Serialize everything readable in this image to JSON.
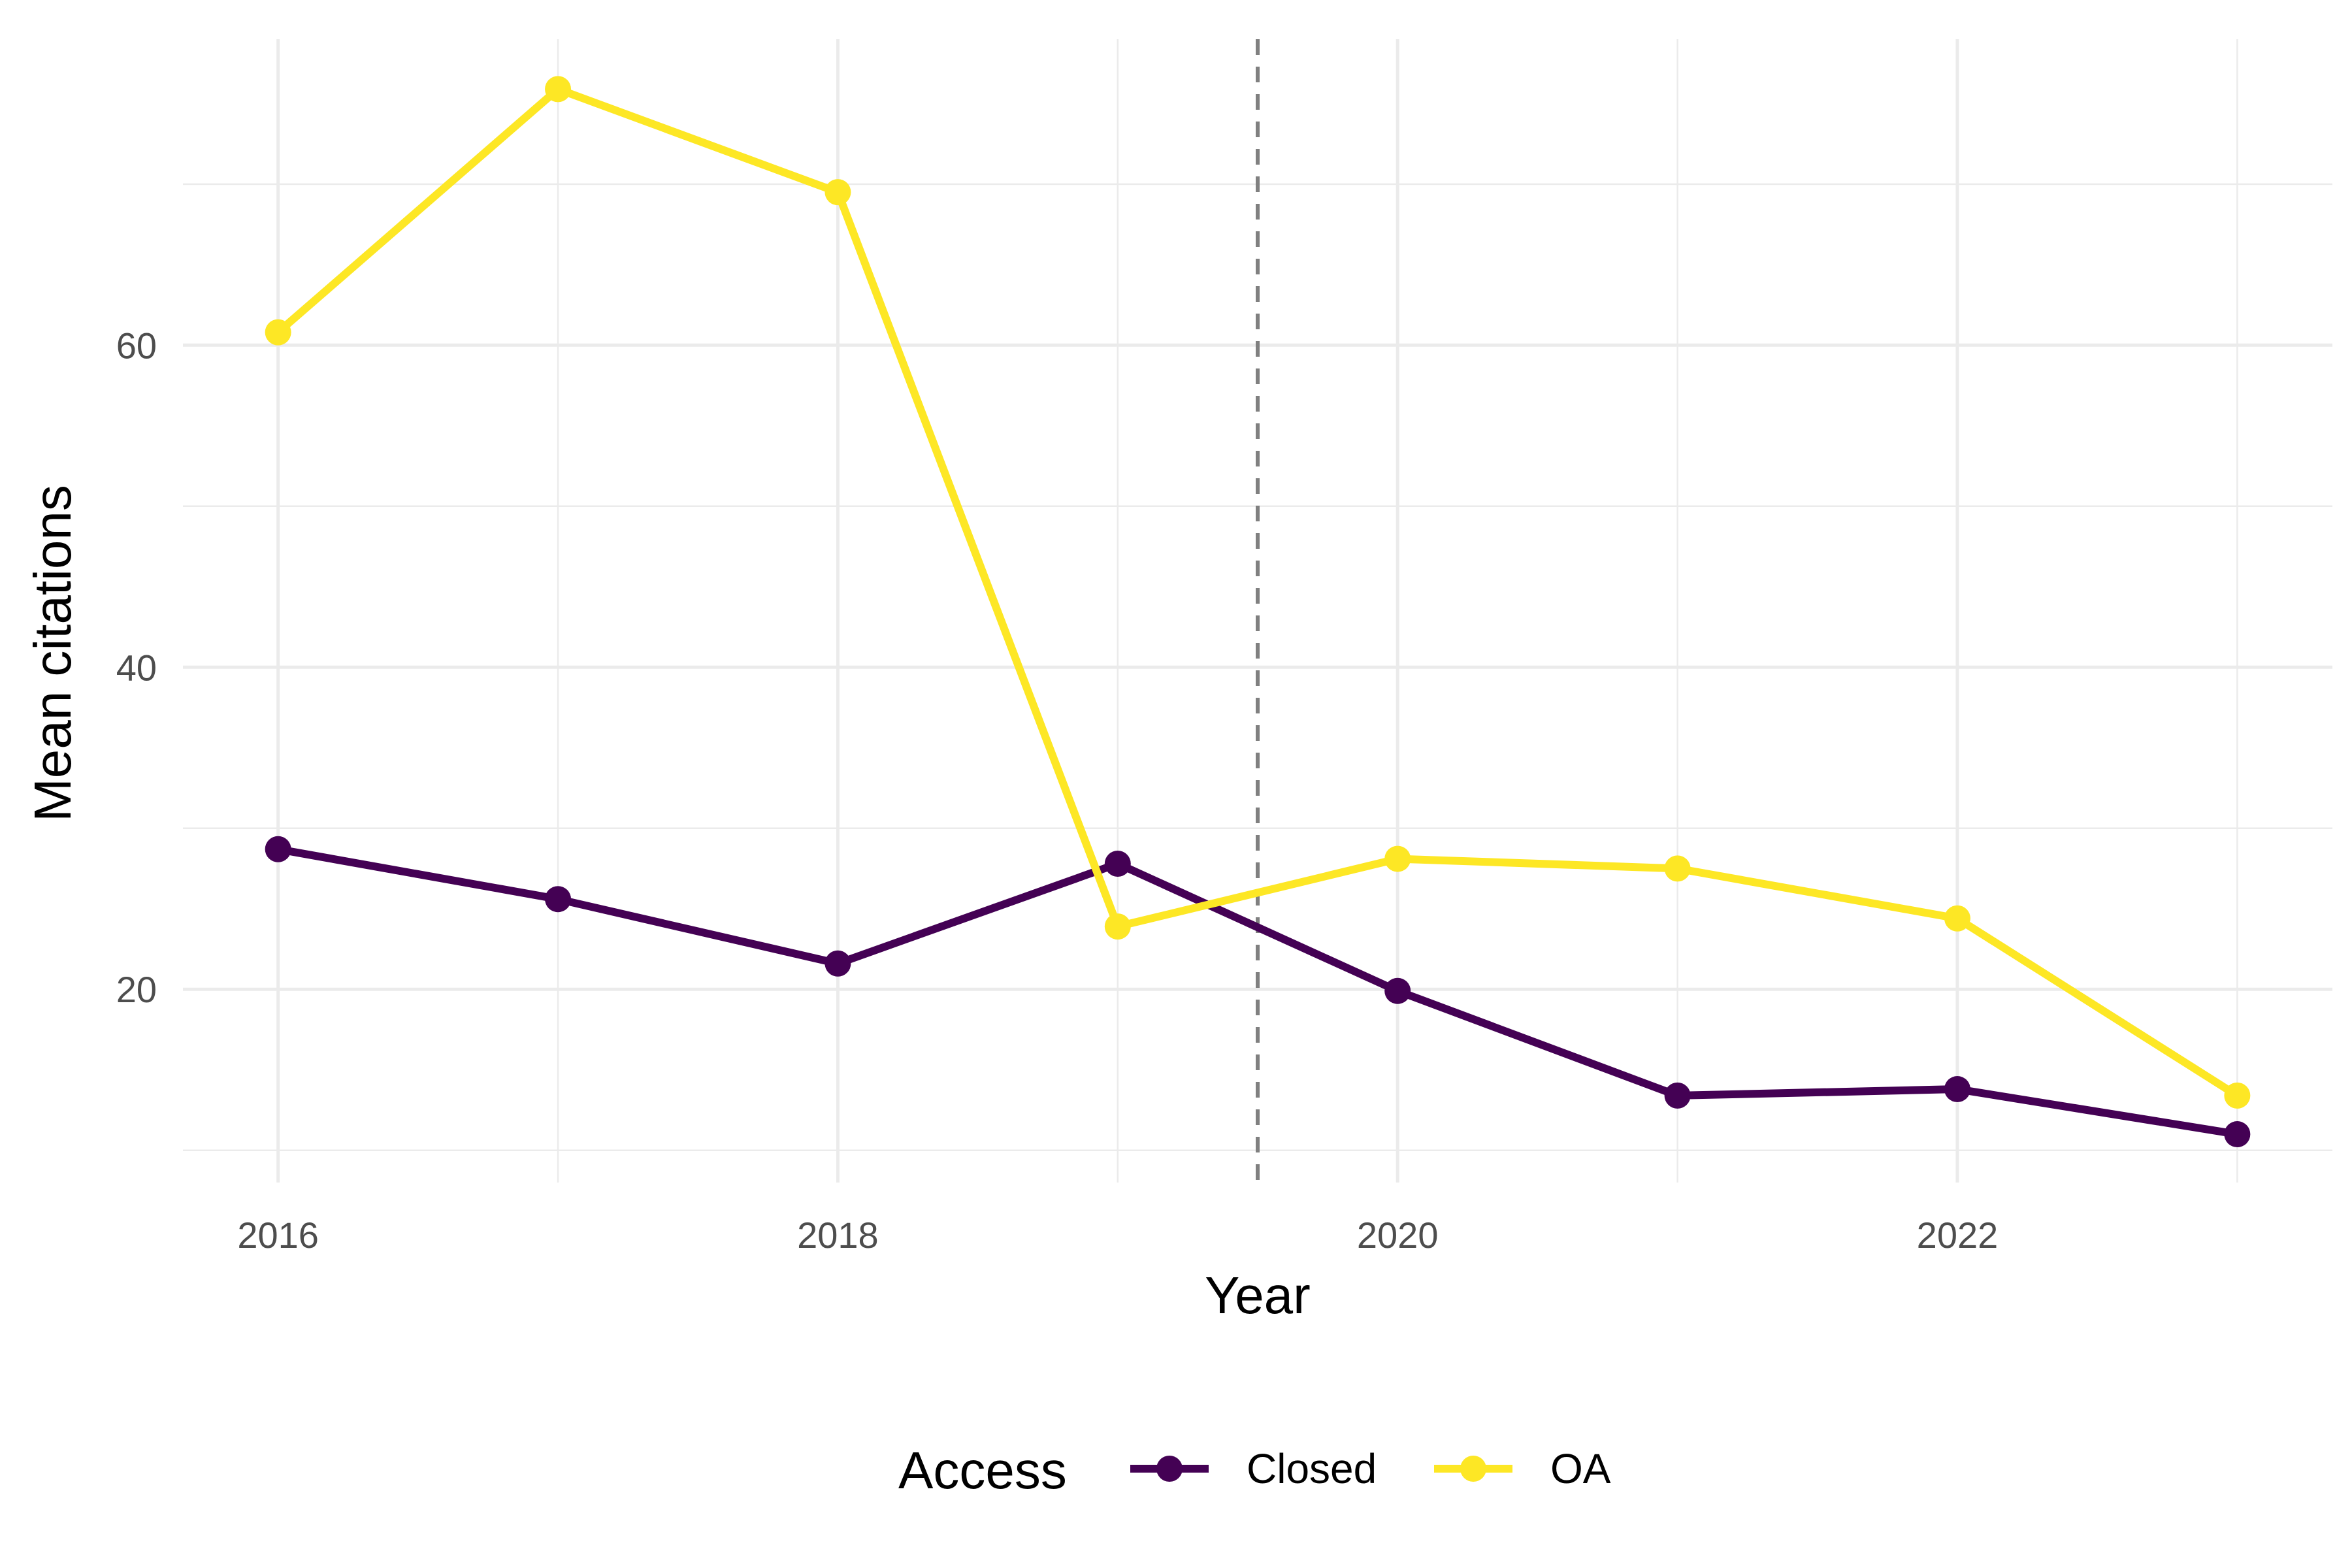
{
  "chart_data": {
    "type": "line",
    "x": [
      2016,
      2017,
      2018,
      2019,
      2020,
      2021,
      2022,
      2023
    ],
    "series": [
      {
        "name": "Closed",
        "color": "#440154",
        "values": [
          28.7,
          25.6,
          21.6,
          27.8,
          19.9,
          13.4,
          13.8,
          11.0
        ]
      },
      {
        "name": "OA",
        "color": "#FDE725",
        "values": [
          60.8,
          75.9,
          69.5,
          23.9,
          28.1,
          27.5,
          24.4,
          13.4
        ]
      }
    ],
    "xlabel": "Year",
    "ylabel": "Mean citations",
    "xlim": [
      2015.66,
      2023.34
    ],
    "ylim": [
      8.0,
      79.0
    ],
    "x_ticks": [
      2016,
      2018,
      2020,
      2022
    ],
    "x_tick_labels": [
      "2016",
      "2018",
      "2020",
      "2022"
    ],
    "y_ticks": [
      20,
      40,
      60
    ],
    "y_tick_labels": [
      "20",
      "40",
      "60"
    ],
    "vline": {
      "x": 2019.5,
      "style": "dashed",
      "color": "#808080"
    },
    "grid": true,
    "legend": {
      "title": "Access",
      "position": "bottom"
    }
  }
}
